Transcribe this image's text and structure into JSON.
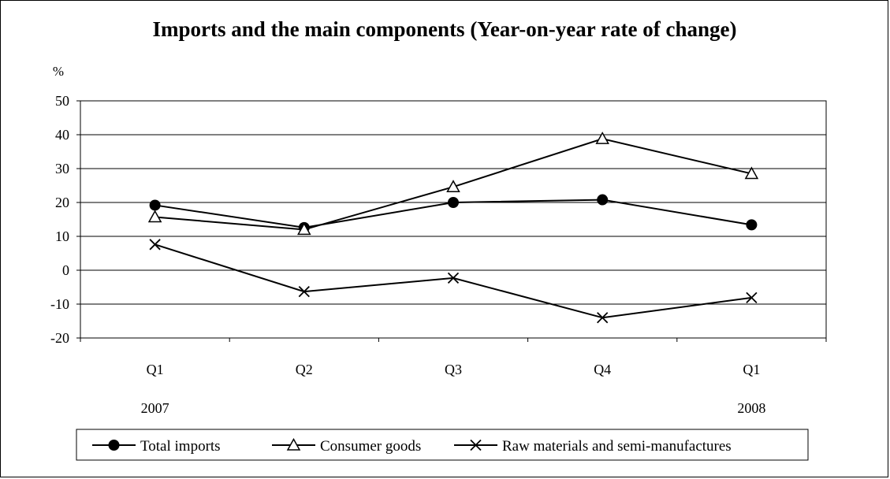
{
  "chart_data": {
    "type": "line",
    "title": "Imports and the main components (Year-on-year rate of change)",
    "y_unit": "%",
    "categories": [
      "Q1",
      "Q2",
      "Q3",
      "Q4",
      "Q1"
    ],
    "year_labels": [
      {
        "index": 0,
        "label": "2007"
      },
      {
        "index": 4,
        "label": "2008"
      }
    ],
    "ylim": [
      -20,
      50
    ],
    "yticks": [
      50,
      40,
      30,
      20,
      10,
      0,
      -10,
      -20
    ],
    "grid": true,
    "legend_position": "bottom",
    "series": [
      {
        "name": "Total imports",
        "marker": "filled-circle",
        "values": [
          19.2,
          12.6,
          20.0,
          20.8,
          13.4
        ]
      },
      {
        "name": "Consumer goods",
        "marker": "open-triangle",
        "values": [
          15.7,
          12.0,
          24.6,
          38.8,
          28.5
        ]
      },
      {
        "name": "Raw materials and semi-manufactures",
        "marker": "x",
        "values": [
          7.6,
          -6.3,
          -2.3,
          -14.0,
          -8.1
        ]
      }
    ]
  }
}
